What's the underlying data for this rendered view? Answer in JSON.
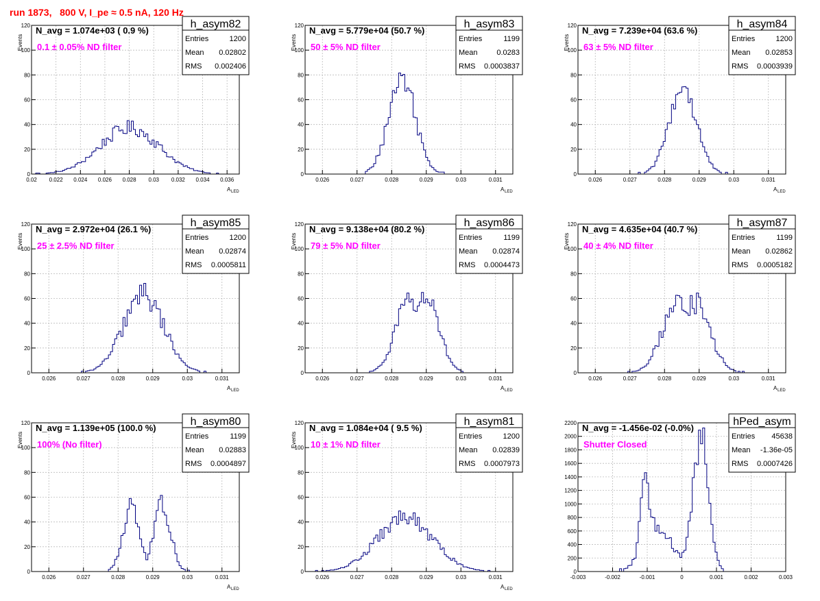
{
  "page": {
    "title": "run 1873,   800 V, I_pe ≈ 0.5 nA, 120 Hz"
  },
  "colors": {
    "title": "#ff0000",
    "annotation": "#ff00ff",
    "histogram": "#000080",
    "grid": "#bbbbbb",
    "axis": "#000000"
  },
  "chart_data": [
    {
      "type": "bar",
      "id": "h_asym82",
      "stats_title": "h_asym82",
      "stats": [
        {
          "label": "Entries",
          "value": "1200"
        },
        {
          "label": "Mean",
          "value": "0.02802"
        },
        {
          "label": "RMS",
          "value": "0.002406"
        }
      ],
      "n_avg": "N_avg = 1.074e+03 ( 0.9 %)",
      "filter": "0.1 ± 0.05% ND filter",
      "xlabel": "A",
      "xlabel_sub": "LED",
      "ylabel": "Events",
      "xlim": [
        0.02,
        0.037
      ],
      "ylim": [
        0,
        120
      ],
      "xticks": [
        "0.02",
        "0.022",
        "0.024",
        "0.026",
        "0.028",
        "0.03",
        "0.032",
        "0.034",
        "0.036"
      ],
      "xtick_values": [
        0.02,
        0.022,
        0.024,
        0.026,
        0.028,
        0.03,
        0.032,
        0.034,
        0.036
      ],
      "yticks": [
        0,
        20,
        40,
        60,
        80,
        100,
        120
      ],
      "grid": true,
      "mean": 0.02802,
      "rms": 0.002406,
      "entries": 1200,
      "bins": 100,
      "peak": 38,
      "shape": "broad"
    },
    {
      "type": "bar",
      "id": "h_asym83",
      "stats_title": "h_asym83",
      "stats": [
        {
          "label": "Entries",
          "value": "1199"
        },
        {
          "label": "Mean",
          "value": "0.0283"
        },
        {
          "label": "RMS",
          "value": "0.0003837"
        }
      ],
      "n_avg": "N_avg = 5.779e+04 (50.7 %)",
      "filter": "50 ± 5% ND filter",
      "xlabel": "A",
      "xlabel_sub": "LED",
      "ylabel": "Events",
      "xlim": [
        0.0255,
        0.0315
      ],
      "ylim": [
        0,
        120
      ],
      "xticks": [
        "0.026",
        "0.027",
        "0.028",
        "0.029",
        "0.03",
        "0.031"
      ],
      "xtick_values": [
        0.026,
        0.027,
        0.028,
        0.029,
        0.03,
        0.031
      ],
      "yticks": [
        0,
        20,
        40,
        60,
        80,
        100,
        120
      ],
      "grid": true,
      "mean": 0.0283,
      "rms": 0.0003837,
      "entries": 1199,
      "bins": 100,
      "peak": 80,
      "shape": "gauss"
    },
    {
      "type": "bar",
      "id": "h_asym84",
      "stats_title": "h_asym84",
      "stats": [
        {
          "label": "Entries",
          "value": "1200"
        },
        {
          "label": "Mean",
          "value": "0.02853"
        },
        {
          "label": "RMS",
          "value": "0.0003939"
        }
      ],
      "n_avg": "N_avg = 7.239e+04 (63.6 %)",
      "filter": "63 ± 5% ND filter",
      "xlabel": "A",
      "xlabel_sub": "LED",
      "ylabel": "Events",
      "xlim": [
        0.0255,
        0.0315
      ],
      "ylim": [
        0,
        120
      ],
      "xticks": [
        "0.026",
        "0.027",
        "0.028",
        "0.029",
        "0.03",
        "0.031"
      ],
      "xtick_values": [
        0.026,
        0.027,
        0.028,
        0.029,
        0.03,
        0.031
      ],
      "yticks": [
        0,
        20,
        40,
        60,
        80,
        100,
        120
      ],
      "grid": true,
      "mean": 0.02853,
      "rms": 0.0003939,
      "entries": 1200,
      "bins": 100,
      "peak": 72,
      "shape": "gauss"
    },
    {
      "type": "bar",
      "id": "h_asym85",
      "stats_title": "h_asym85",
      "stats": [
        {
          "label": "Entries",
          "value": "1200"
        },
        {
          "label": "Mean",
          "value": "0.02874"
        },
        {
          "label": "RMS",
          "value": "0.0005811"
        }
      ],
      "n_avg": "N_avg = 2.972e+04 (26.1 %)",
      "filter": "25 ± 2.5% ND filter",
      "xlabel": "A",
      "xlabel_sub": "LED",
      "ylabel": "Events",
      "xlim": [
        0.0255,
        0.0315
      ],
      "ylim": [
        0,
        120
      ],
      "xticks": [
        "0.026",
        "0.027",
        "0.028",
        "0.029",
        "0.03",
        "0.031"
      ],
      "xtick_values": [
        0.026,
        0.027,
        0.028,
        0.029,
        0.03,
        0.031
      ],
      "yticks": [
        0,
        20,
        40,
        60,
        80,
        100,
        120
      ],
      "grid": true,
      "mean": 0.02874,
      "rms": 0.0005811,
      "entries": 1200,
      "bins": 100,
      "peak": 64,
      "shape": "gauss"
    },
    {
      "type": "bar",
      "id": "h_asym86",
      "stats_title": "h_asym86",
      "stats": [
        {
          "label": "Entries",
          "value": "1199"
        },
        {
          "label": "Mean",
          "value": "0.02874"
        },
        {
          "label": "RMS",
          "value": "0.0004473"
        }
      ],
      "n_avg": "N_avg = 9.138e+04 (80.2 %)",
      "filter": "79 ± 5% ND filter",
      "xlabel": "A",
      "xlabel_sub": "LED",
      "ylabel": "Events",
      "xlim": [
        0.0255,
        0.0315
      ],
      "ylim": [
        0,
        120
      ],
      "xticks": [
        "0.026",
        "0.027",
        "0.028",
        "0.029",
        "0.03",
        "0.031"
      ],
      "xtick_values": [
        0.026,
        0.027,
        0.028,
        0.029,
        0.03,
        0.031
      ],
      "yticks": [
        0,
        20,
        40,
        60,
        80,
        100,
        120
      ],
      "grid": true,
      "mean": 0.02874,
      "rms": 0.0004473,
      "entries": 1199,
      "bins": 100,
      "peak": 62,
      "shape": "flat"
    },
    {
      "type": "bar",
      "id": "h_asym87",
      "stats_title": "h_asym87",
      "stats": [
        {
          "label": "Entries",
          "value": "1199"
        },
        {
          "label": "Mean",
          "value": "0.02862"
        },
        {
          "label": "RMS",
          "value": "0.0005182"
        }
      ],
      "n_avg": "N_avg = 4.635e+04 (40.7 %)",
      "filter": "40 ± 4% ND filter",
      "xlabel": "A",
      "xlabel_sub": "LED",
      "ylabel": "Events",
      "xlim": [
        0.0255,
        0.0315
      ],
      "ylim": [
        0,
        120
      ],
      "xticks": [
        "0.026",
        "0.027",
        "0.028",
        "0.029",
        "0.03",
        "0.031"
      ],
      "xtick_values": [
        0.026,
        0.027,
        0.028,
        0.029,
        0.03,
        0.031
      ],
      "yticks": [
        0,
        20,
        40,
        60,
        80,
        100,
        120
      ],
      "grid": true,
      "mean": 0.02862,
      "rms": 0.0005182,
      "entries": 1199,
      "bins": 100,
      "peak": 58,
      "shape": "flat"
    },
    {
      "type": "bar",
      "id": "h_asym80",
      "stats_title": "h_asym80",
      "stats": [
        {
          "label": "Entries",
          "value": "1199"
        },
        {
          "label": "Mean",
          "value": "0.02883"
        },
        {
          "label": "RMS",
          "value": "0.0004897"
        }
      ],
      "n_avg": "N_avg = 1.139e+05 (100.0 %)",
      "filter": "100% (No filter)",
      "xlabel": "A",
      "xlabel_sub": "LED",
      "ylabel": "Events",
      "xlim": [
        0.0255,
        0.0315
      ],
      "ylim": [
        0,
        120
      ],
      "xticks": [
        "0.026",
        "0.027",
        "0.028",
        "0.029",
        "0.03",
        "0.031"
      ],
      "xtick_values": [
        0.026,
        0.027,
        0.028,
        0.029,
        0.03,
        0.031
      ],
      "yticks": [
        0,
        20,
        40,
        60,
        80,
        100,
        120
      ],
      "grid": true,
      "mean": 0.02883,
      "rms": 0.0004897,
      "entries": 1199,
      "bins": 100,
      "peak": 56,
      "shape": "bimodal"
    },
    {
      "type": "bar",
      "id": "h_asym81",
      "stats_title": "h_asym81",
      "stats": [
        {
          "label": "Entries",
          "value": "1200"
        },
        {
          "label": "Mean",
          "value": "0.02839"
        },
        {
          "label": "RMS",
          "value": "0.0007973"
        }
      ],
      "n_avg": "N_avg = 1.084e+04 ( 9.5 %)",
      "filter": "10 ± 1% ND filter",
      "xlabel": "A",
      "xlabel_sub": "LED",
      "ylabel": "Events",
      "xlim": [
        0.0255,
        0.0315
      ],
      "ylim": [
        0,
        120
      ],
      "xticks": [
        "0.026",
        "0.027",
        "0.028",
        "0.029",
        "0.03",
        "0.031"
      ],
      "xtick_values": [
        0.026,
        0.027,
        0.028,
        0.029,
        0.03,
        0.031
      ],
      "yticks": [
        0,
        20,
        40,
        60,
        80,
        100,
        120
      ],
      "grid": true,
      "mean": 0.02839,
      "rms": 0.0007973,
      "entries": 1200,
      "bins": 100,
      "peak": 44,
      "shape": "broad"
    },
    {
      "type": "bar",
      "id": "hPed_asym",
      "stats_title": "hPed_asym",
      "stats": [
        {
          "label": "Entries",
          "value": "45638"
        },
        {
          "label": "Mean",
          "value": "-1.36e-05"
        },
        {
          "label": "RMS",
          "value": "0.0007426"
        }
      ],
      "n_avg": "N_avg = -1.456e-02 (-0.0%)",
      "filter": "Shutter Closed",
      "xlabel": "",
      "xlabel_sub": "",
      "ylabel": "",
      "xlim": [
        -0.003,
        0.003
      ],
      "ylim": [
        0,
        2200
      ],
      "xticks": [
        "-0.003",
        "-0.002",
        "-0.001",
        "0",
        "0.001",
        "0.002",
        "0.003"
      ],
      "xtick_values": [
        -0.003,
        -0.002,
        -0.001,
        0,
        0.001,
        0.002,
        0.003
      ],
      "yticks": [
        0,
        200,
        400,
        600,
        800,
        1000,
        1200,
        1400,
        1600,
        1800,
        2000,
        2200
      ],
      "grid": true,
      "mean": -1.36e-05,
      "rms": 0.0007426,
      "entries": 45638,
      "bins": 100,
      "peak": 2100,
      "shape": "pedestal"
    }
  ]
}
